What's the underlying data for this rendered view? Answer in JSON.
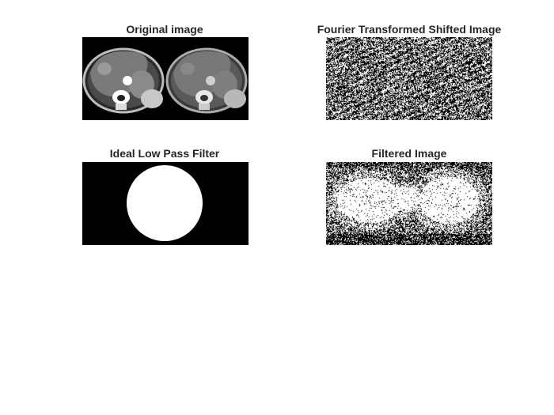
{
  "figure": {
    "panels": [
      {
        "title": "Original image",
        "content": "ct-scan-pair"
      },
      {
        "title": "Fourier Transformed Shifted Image",
        "content": "noise-binary"
      },
      {
        "title": "Ideal Low Pass Filter",
        "content": "circle-mask"
      },
      {
        "title": "Filtered Image",
        "content": "filtered-binary"
      }
    ],
    "colors": {
      "title_text": "#262626",
      "background": "#ffffff",
      "mask_fill": "#ffffff",
      "image_background": "#000000"
    }
  }
}
